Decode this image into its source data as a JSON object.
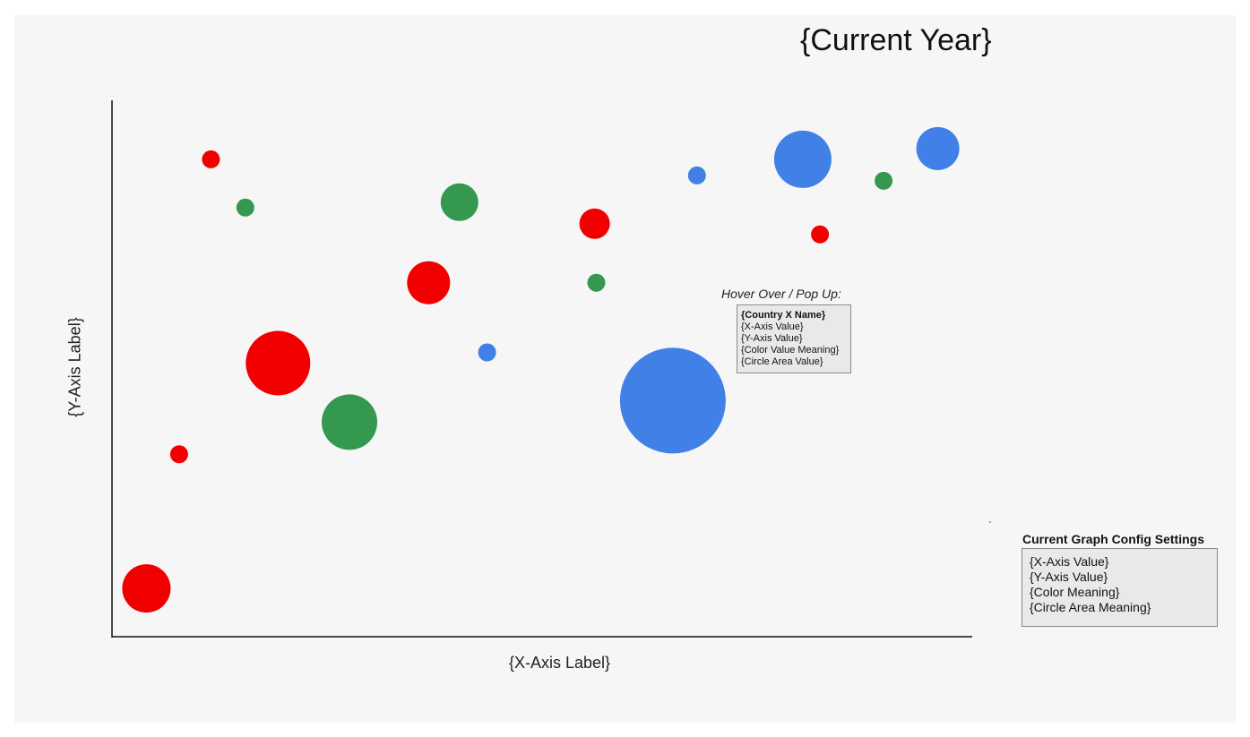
{
  "chart_data": {
    "type": "scatter",
    "title": "{Current Year}",
    "xlabel": "{X-Axis Label}",
    "ylabel": "{Y-Axis Label}",
    "xlim": [
      0,
      100
    ],
    "ylim": [
      0,
      100
    ],
    "grid": false,
    "colors": {
      "red": "#f20000",
      "green": "#34984f",
      "blue": "#4180e6"
    },
    "points": [
      {
        "x": 4,
        "y": 9,
        "size": 27,
        "color": "red"
      },
      {
        "x": 7.8,
        "y": 34,
        "size": 10,
        "color": "red"
      },
      {
        "x": 11.5,
        "y": 89,
        "size": 10,
        "color": "red"
      },
      {
        "x": 15.5,
        "y": 80,
        "size": 10,
        "color": "green"
      },
      {
        "x": 19.3,
        "y": 51,
        "size": 36,
        "color": "red"
      },
      {
        "x": 27.6,
        "y": 40,
        "size": 31,
        "color": "green"
      },
      {
        "x": 36.8,
        "y": 66,
        "size": 24,
        "color": "red"
      },
      {
        "x": 40.4,
        "y": 81,
        "size": 21,
        "color": "green"
      },
      {
        "x": 43.6,
        "y": 53,
        "size": 10,
        "color": "blue"
      },
      {
        "x": 56.1,
        "y": 77,
        "size": 17,
        "color": "red"
      },
      {
        "x": 56.3,
        "y": 66,
        "size": 10,
        "color": "green"
      },
      {
        "x": 65.2,
        "y": 44,
        "size": 59,
        "color": "blue"
      },
      {
        "x": 68,
        "y": 86,
        "size": 10,
        "color": "blue"
      },
      {
        "x": 80.3,
        "y": 89,
        "size": 32,
        "color": "blue"
      },
      {
        "x": 82.3,
        "y": 75,
        "size": 10,
        "color": "red"
      },
      {
        "x": 89.7,
        "y": 85,
        "size": 10,
        "color": "green"
      },
      {
        "x": 96,
        "y": 91,
        "size": 24,
        "color": "blue"
      }
    ]
  },
  "hover_popup": {
    "caption": "Hover Over / Pop Up:",
    "lines": [
      "{Country X Name}",
      "{X-Axis Value}",
      "{Y-Axis Value}",
      "{Color Value Meaning}",
      "{Circle Area Value}"
    ]
  },
  "config_panel": {
    "title": "Current Graph Config Settings",
    "lines": [
      "{X-Axis Value}",
      "{Y-Axis Value}",
      "{Color  Meaning}",
      "{Circle Area Meaning}"
    ]
  },
  "stray_mark": "`"
}
